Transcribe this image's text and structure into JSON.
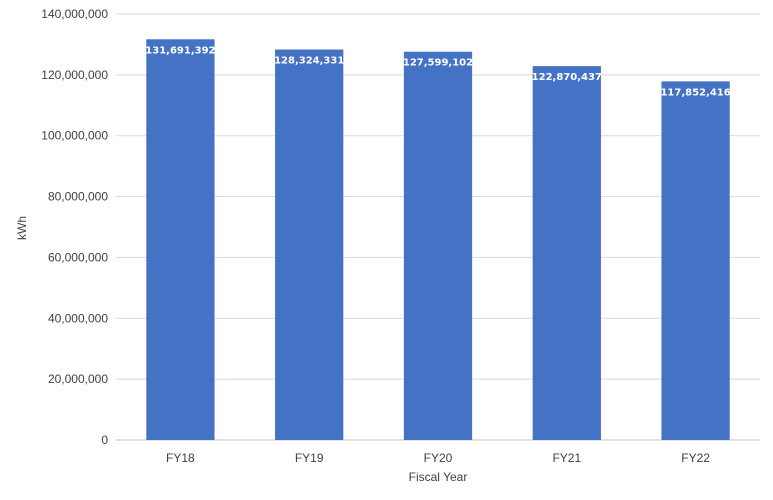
{
  "chart_data": {
    "type": "bar",
    "categories": [
      "FY18",
      "FY19",
      "FY20",
      "FY21",
      "FY22"
    ],
    "values": [
      131691392,
      128324331,
      127599102,
      122870437,
      117852416
    ],
    "data_labels": [
      "131,691,392",
      "128,324,331",
      "127,599,102",
      "122,870,437",
      "117,852,416"
    ],
    "xlabel": "Fiscal Year",
    "ylabel": "kWh",
    "ylim": [
      0,
      140000000
    ],
    "y_ticks": [
      0,
      20000000,
      40000000,
      60000000,
      80000000,
      100000000,
      120000000,
      140000000
    ],
    "y_tick_labels": [
      "0",
      "20,000,000",
      "40,000,000",
      "60,000,000",
      "80,000,000",
      "100,000,000",
      "120,000,000",
      "140,000,000"
    ],
    "grid": true,
    "legend": "none",
    "bar_color": "#4472c4"
  }
}
